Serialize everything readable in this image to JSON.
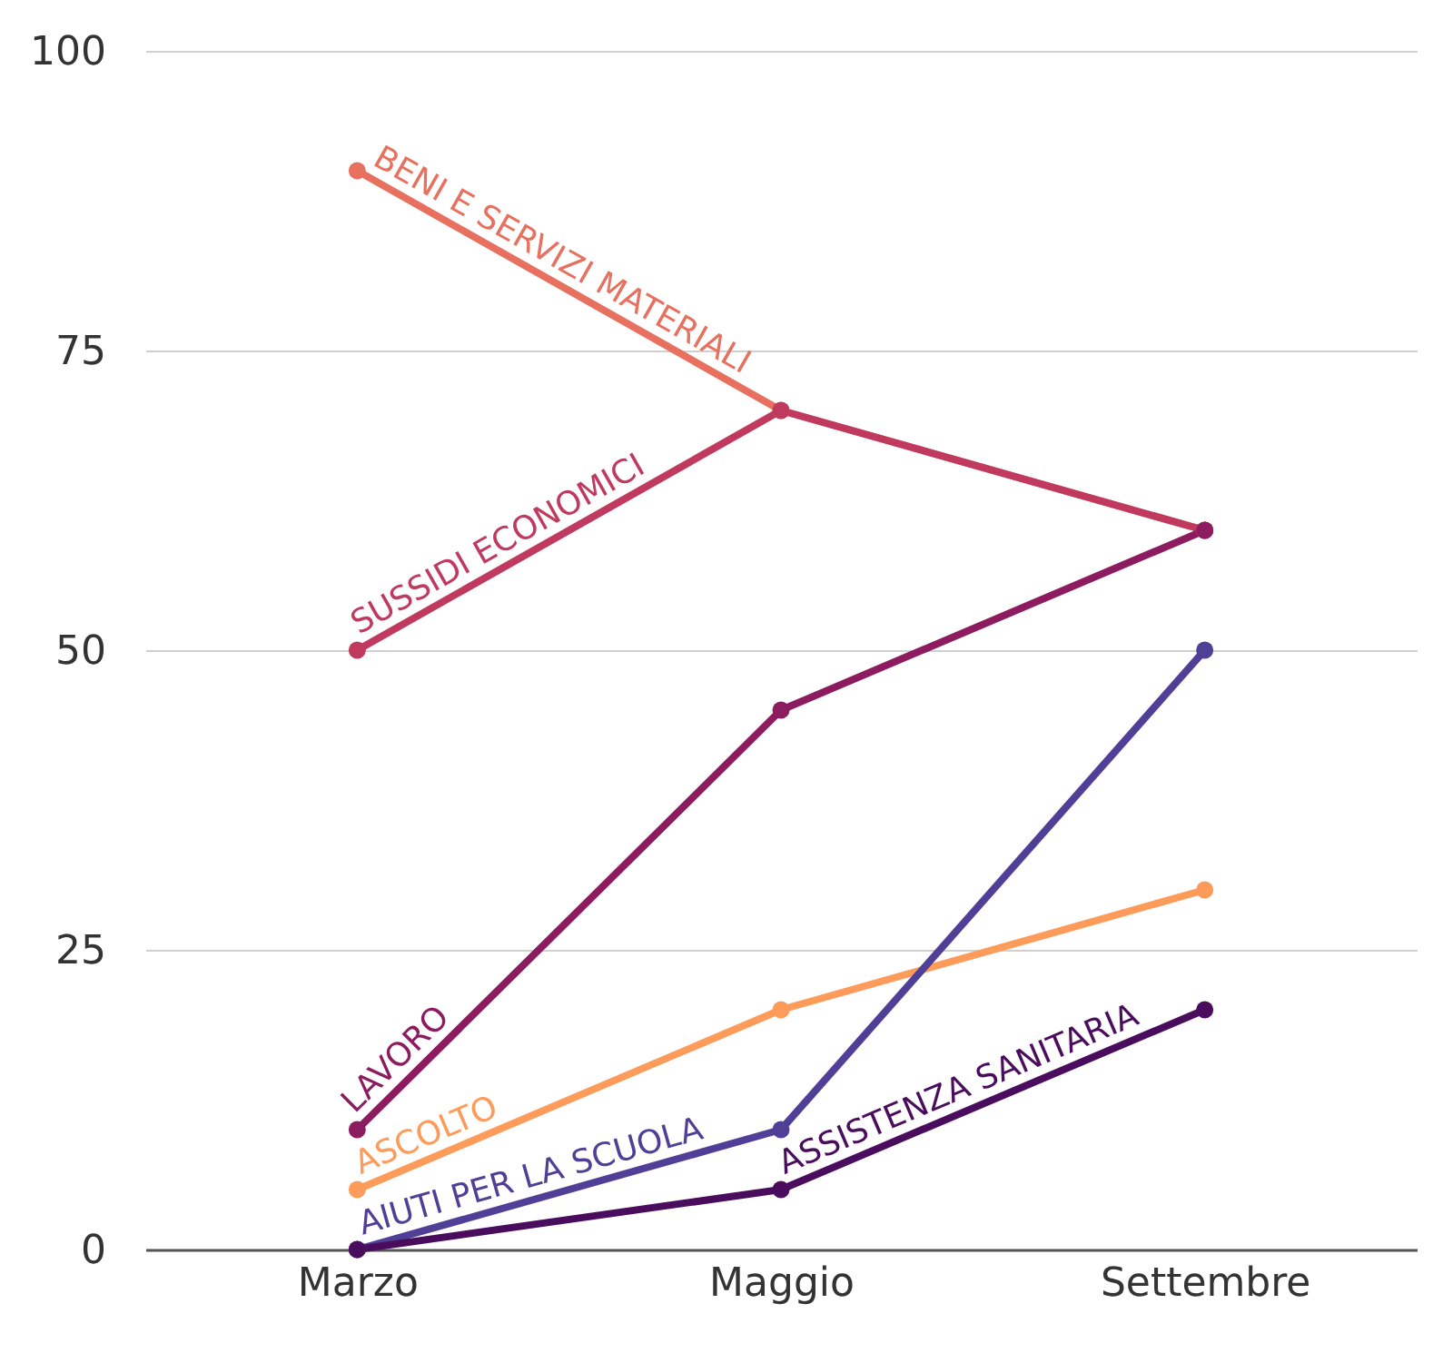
{
  "chart_data": {
    "type": "line",
    "categories": [
      "Marzo",
      "Maggio",
      "Settembre"
    ],
    "series": [
      {
        "name": "BENI E SERVIZI MATERIALI",
        "color": "#e8705f",
        "values": [
          90,
          70,
          60
        ]
      },
      {
        "name": "SUSSIDI ECONOMICI",
        "color": "#c0395e",
        "values": [
          50,
          70,
          60
        ]
      },
      {
        "name": "LAVORO",
        "color": "#8c1b5f",
        "values": [
          10,
          45,
          60
        ]
      },
      {
        "name": "ASCOLTO",
        "color": "#fd9b5a",
        "values": [
          5,
          20,
          30
        ]
      },
      {
        "name": "AIUTI PER LA SCUOLA",
        "color": "#4f3f96",
        "values": [
          0,
          10,
          50
        ]
      },
      {
        "name": "ASSISTENZA SANITARIA",
        "color": "#4a0c5c",
        "values": [
          0,
          5,
          20
        ]
      }
    ],
    "ylim": [
      0,
      100
    ],
    "yticks": [
      0,
      25,
      50,
      75,
      100
    ],
    "grid": "y",
    "marker": "circle",
    "line_style": "solid",
    "legend": false
  }
}
